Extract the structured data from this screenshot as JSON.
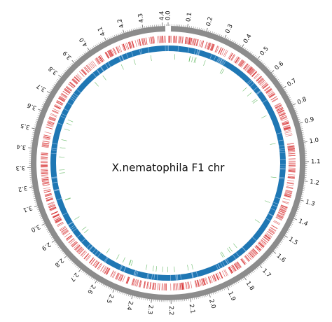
{
  "title": "X.nematophila F1 chr",
  "genome_size_mb": 4.43,
  "tick_labels": [
    "0.0",
    "0.1",
    "0.2",
    "0.3",
    "0.4",
    "0.5",
    "0.6",
    "0.7",
    "0.8",
    "0.9",
    "1.0",
    "1.1",
    "1.2",
    "1.3",
    "1.4",
    "1.5",
    "1.6",
    "1.7",
    "1.8",
    "1.9",
    "2.0",
    "2.1",
    "2.2",
    "2.3",
    "2.4",
    "2.5",
    "2.6",
    "2.7",
    "2.8",
    "2.9",
    "3.0",
    "3.1",
    "3.2",
    "3.3",
    "3.4",
    "3.5",
    "3.6",
    "3.7",
    "3.8",
    "3.9",
    "4.0",
    "4.1",
    "4.2",
    "4.3",
    "4.4"
  ],
  "colors": {
    "ideogram": "#8c8c8c",
    "red_track": "#d62728",
    "blue_track": "#1f77b4",
    "green_track": "#2ca02c"
  },
  "tracks": [
    {
      "name": "ideogram",
      "color": "ideogram"
    },
    {
      "name": "red-features",
      "color": "red_track"
    },
    {
      "name": "blue-features",
      "color": "blue_track"
    },
    {
      "name": "green-features",
      "color": "green_track"
    }
  ]
}
